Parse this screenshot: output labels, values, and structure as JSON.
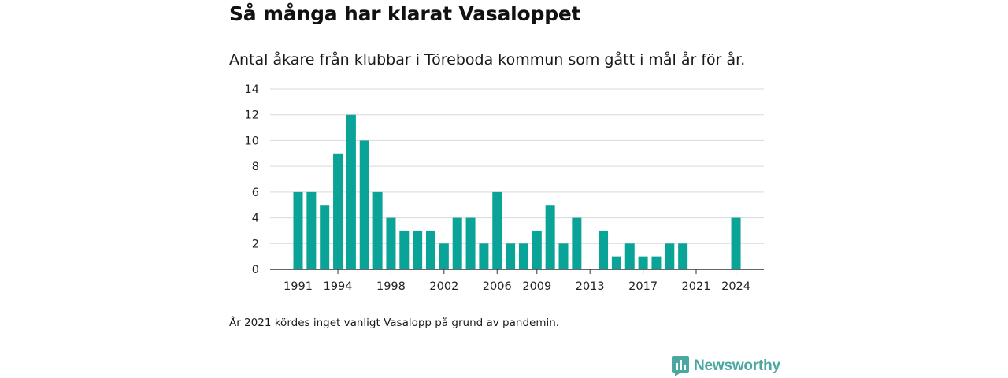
{
  "header": {
    "title": "Så många har klarat Vasaloppet",
    "subtitle": "Antal åkare från klubbar i Töreboda kommun som gått i mål år för år."
  },
  "footnote": "År 2021 kördes inget vanligt Vasalopp på grund av pandemin.",
  "logo": {
    "text": "Newsworthy",
    "icon": "newsworthy-logo-icon"
  },
  "colors": {
    "bar": "#0aa398",
    "grid": "#d9d9d9",
    "axis": "#333333",
    "brand": "#4aa8a0"
  },
  "chart_data": {
    "type": "bar",
    "title": "Så många har klarat Vasaloppet",
    "subtitle": "Antal åkare från klubbar i Töreboda kommun som gått i mål år för år.",
    "xlabel": "",
    "ylabel": "",
    "categories": [
      1991,
      1992,
      1993,
      1994,
      1995,
      1996,
      1997,
      1998,
      1999,
      2000,
      2001,
      2002,
      2003,
      2004,
      2005,
      2006,
      2007,
      2008,
      2009,
      2010,
      2011,
      2012,
      2013,
      2014,
      2015,
      2016,
      2017,
      2018,
      2019,
      2020,
      2021,
      2022,
      2023,
      2024
    ],
    "values": [
      6,
      6,
      5,
      9,
      12,
      10,
      6,
      4,
      3,
      3,
      3,
      2,
      4,
      4,
      2,
      6,
      2,
      2,
      3,
      5,
      2,
      4,
      0,
      3,
      1,
      2,
      1,
      1,
      2,
      2,
      0,
      0,
      0,
      4
    ],
    "x_ticks": [
      "1991",
      "1994",
      "1998",
      "2002",
      "2006",
      "2009",
      "2013",
      "2017",
      "2021",
      "2024"
    ],
    "y_ticks": [
      0,
      2,
      4,
      6,
      8,
      10,
      12,
      14
    ],
    "ylim": [
      0,
      14
    ],
    "grid": true,
    "legend": "none"
  }
}
